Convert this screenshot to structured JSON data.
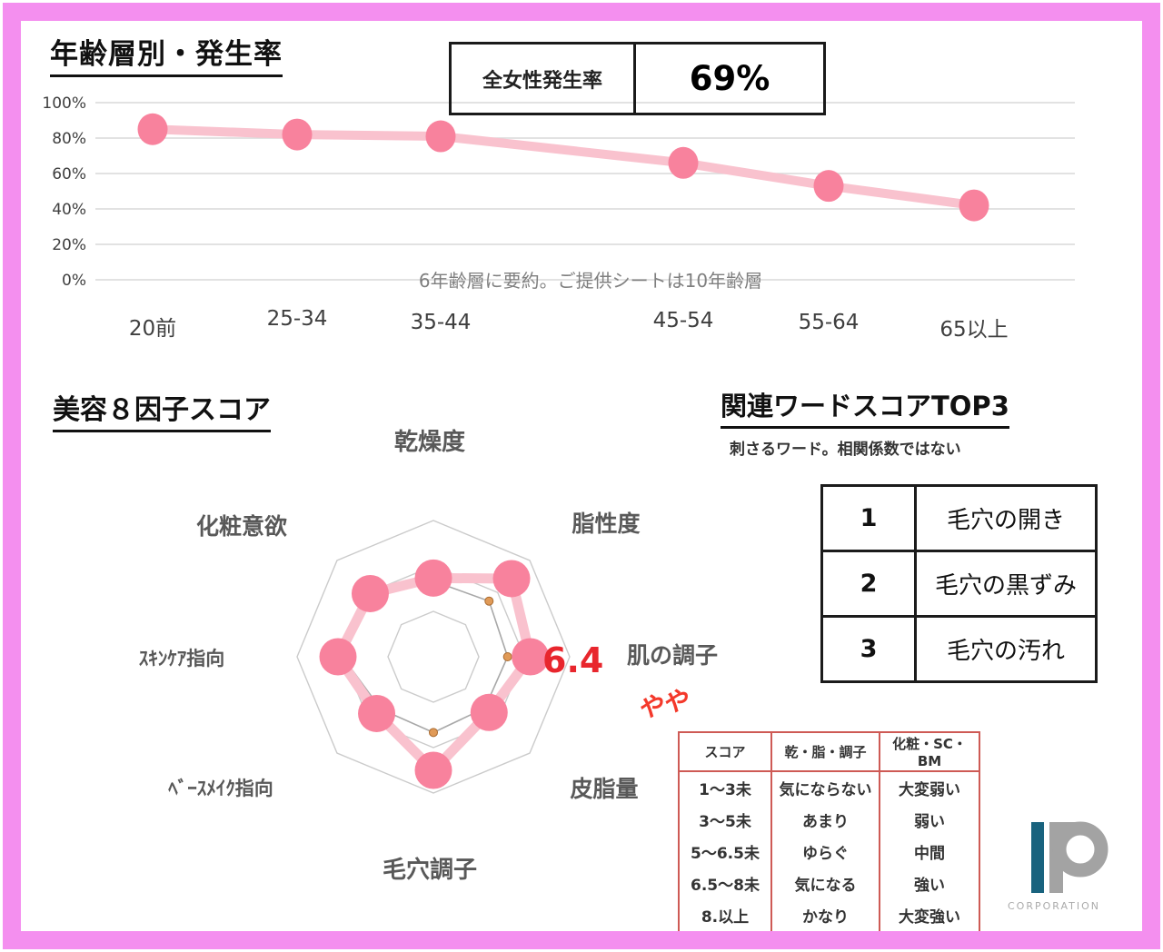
{
  "line_section": {
    "title": "年齢層別・発生率",
    "rate_box": {
      "label": "全女性発生率",
      "value": "69%"
    },
    "note": "6年齢層に要約。ご提供シートは10年齢層"
  },
  "radar_section": {
    "title": "美容８因子スコア",
    "score_callout": "6.4",
    "handwritten_note": "やや"
  },
  "top3": {
    "title": "関連ワードスコアTOP3",
    "subtitle": "刺さるワード。相関係数ではない",
    "rows": [
      {
        "rank": "1",
        "word": "毛穴の開き"
      },
      {
        "rank": "2",
        "word": "毛穴の黒ずみ"
      },
      {
        "rank": "3",
        "word": "毛穴の汚れ"
      }
    ]
  },
  "score_legend": {
    "headers": [
      "スコア",
      "乾・脂・調子",
      "化粧・SC・BM"
    ],
    "rows": [
      [
        "1〜3未",
        "気にならない",
        "大変弱い"
      ],
      [
        "3〜5未",
        "あまり",
        "弱い"
      ],
      [
        "5〜6.5未",
        "ゆらぐ",
        "中間"
      ],
      [
        "6.5〜8未",
        "気になる",
        "強い"
      ],
      [
        "8.以上",
        "かなり",
        "大変強い"
      ]
    ]
  },
  "logo": {
    "caption": "CORPORATION"
  },
  "colors": {
    "frame_pink": "#F48FEF",
    "series_dot_pink": "#F8829D",
    "series_band_pink": "#F9C2CE",
    "benchmark_dot_orange": "#E09A57",
    "annotation_red": "#E8262D",
    "legend_border_red": "#CE5A55",
    "logo_teal": "#19637E",
    "logo_gray": "#A3A3A3"
  },
  "chart_data": [
    {
      "id": "age-incidence",
      "type": "line",
      "title": "年齢層別・発生率",
      "categories": [
        "20前",
        "25-34",
        "35-44",
        "45-54",
        "55-64",
        "65以上"
      ],
      "values": [
        85,
        82,
        81,
        66,
        53,
        42
      ],
      "unit": "%",
      "ylim": [
        0,
        100
      ],
      "yticks": [
        "0%",
        "20%",
        "40%",
        "60%",
        "80%",
        "100%"
      ],
      "grid": true,
      "legend": "none",
      "note": "6年齢層に要約。ご提供シートは10年齢層"
    },
    {
      "id": "beauty-8-factor-radar",
      "type": "radar",
      "title": "美容８因子スコア",
      "categories": [
        "乾燥度",
        "脂性度",
        "肌の調子",
        "皮脂量",
        "毛穴調子",
        "ﾍﾞｰｽﾒｲｸ指向",
        "ｽｷﾝｹｱ指向",
        "化粧意欲"
      ],
      "series": [
        {
          "name": "score",
          "values": [
            5.2,
            7.3,
            6.4,
            5.2,
            7.5,
            5.3,
            6.3,
            5.9
          ]
        },
        {
          "name": "reference",
          "values": [
            5.0,
            5.2,
            4.9,
            4.8,
            5.0,
            4.9,
            6.0,
            5.7
          ]
        }
      ],
      "max": 9,
      "ring_values": [
        3,
        6,
        9
      ],
      "grid": true,
      "legend": "none",
      "highlight": {
        "category": "肌の調子",
        "value": "6.4",
        "note": "やや"
      }
    }
  ]
}
